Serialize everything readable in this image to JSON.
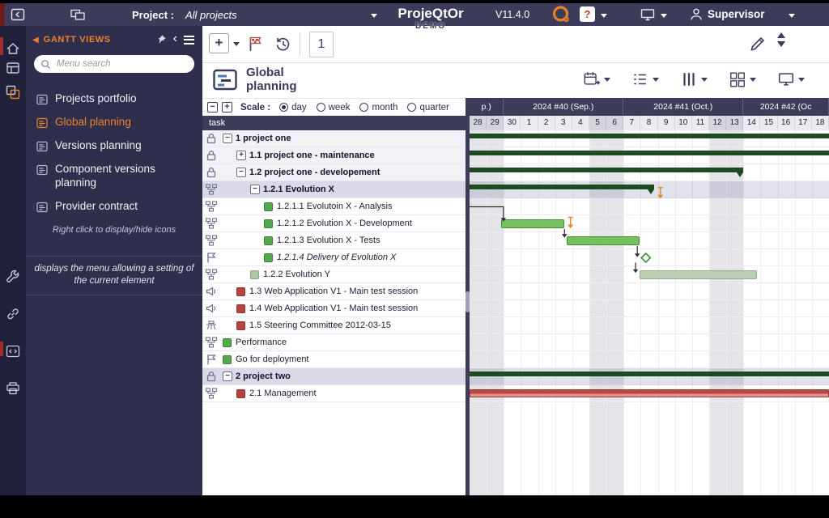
{
  "header": {
    "project_label": "Project :",
    "project_value": "All projects",
    "brand": "ProjeQtOr",
    "brand_sub": "DEMO",
    "version": "V11.4.0",
    "help": "?",
    "user": "Supervisor"
  },
  "sidebar": {
    "title": "GANTT VIEWS",
    "search_placeholder": "Menu search",
    "items": [
      {
        "label": "Projects portfolio",
        "selected": false
      },
      {
        "label": "Global planning",
        "selected": true
      },
      {
        "label": "Versions planning",
        "selected": false
      },
      {
        "label": "Component versions planning",
        "selected": false
      },
      {
        "label": "Provider contract",
        "selected": false
      }
    ],
    "hint": "Right click to display/hide icons",
    "tooltip": "displays the menu allowing a setting of the current element"
  },
  "rail_icons": [
    "home",
    "modules",
    "gantt-views",
    "tools",
    "links",
    "code",
    "print"
  ],
  "toolbar": {
    "count": "1"
  },
  "view": {
    "title": "Global planning",
    "header_icons": [
      "calendar-plus",
      "checklist",
      "columns",
      "layout",
      "screen"
    ]
  },
  "scale": {
    "zoom_out": "−",
    "zoom_in": "+",
    "label": "Scale :",
    "options": [
      "day",
      "week",
      "month",
      "quarter"
    ],
    "selected": "day"
  },
  "gantt": {
    "task_column_header": "task",
    "weeks": [
      {
        "label": "p.)",
        "days": 2
      },
      {
        "label": "2024 #40 (Sep.)",
        "days": 7
      },
      {
        "label": "2024 #41 (Oct.)",
        "days": 7
      },
      {
        "label": "2024 #42 (Oc",
        "days": 5
      }
    ],
    "days": [
      "28",
      "29",
      "30",
      "1",
      "2",
      "3",
      "4",
      "5",
      "6",
      "7",
      "8",
      "9",
      "10",
      "11",
      "12",
      "13",
      "14",
      "15",
      "16",
      "17",
      "18"
    ],
    "weekend_days": [
      0,
      1,
      7,
      8,
      14,
      15
    ],
    "rows": [
      {
        "label": "1 project one",
        "level": 0,
        "icon": "lock",
        "expand": "minus",
        "bold": true,
        "bg": "group",
        "bar": {
          "type": "summary",
          "start": 0,
          "end": 21
        }
      },
      {
        "label": "1.1 project one - maintenance",
        "level": 1,
        "icon": "lock",
        "expand": "plus",
        "bold": true,
        "bg": "group",
        "bar": {
          "type": "summary",
          "start": 0,
          "end": 21
        }
      },
      {
        "label": "1.2 project one - developement",
        "level": 1,
        "icon": "lock",
        "expand": "minus",
        "bold": true,
        "bg": "group",
        "bar": {
          "type": "summary",
          "start": 0,
          "end": 16,
          "cap_right": true
        }
      },
      {
        "label": "1.2.1 Evolution X",
        "level": 2,
        "icon": "org",
        "expand": "minus",
        "bold": true,
        "bg": "selected",
        "bar": {
          "type": "summary",
          "start": 0,
          "end": 10.8,
          "cap_right": true
        }
      },
      {
        "label": "1.2.1.1 Evolutoin X - Analysis",
        "level": 3,
        "icon": "org",
        "square": "green"
      },
      {
        "label": "1.2.1.2 Evolution X - Development",
        "level": 3,
        "icon": "org",
        "square": "green",
        "bar": {
          "type": "task",
          "start": 1.85,
          "end": 5.55
        }
      },
      {
        "label": "1.2.1.3 Evolution X - Tests",
        "level": 3,
        "icon": "org",
        "square": "green",
        "bar": {
          "type": "task",
          "start": 5.68,
          "end": 9.95
        }
      },
      {
        "label": "1.2.1.4 Delivery of Evolution X",
        "level": 3,
        "icon": "flag",
        "square": "green",
        "italic": true,
        "bar": {
          "type": "milestone",
          "start": 10.3
        }
      },
      {
        "label": "1.2.2 Evolution Y",
        "level": 2,
        "icon": "org",
        "square": "lightgreen",
        "bar": {
          "type": "task-light",
          "start": 9.95,
          "end": 16.8
        }
      },
      {
        "label": "1.3 Web Application V1 - Main test session",
        "level": 1,
        "icon": "test",
        "square": "red"
      },
      {
        "label": "1.4 Web Application V1 - Main test session",
        "level": 1,
        "icon": "test",
        "square": "red"
      },
      {
        "label": "1.5 Steering Committee 2012-03-15",
        "level": 1,
        "icon": "meeting",
        "square": "red"
      },
      {
        "label": "Performance",
        "level": 0,
        "icon": "org",
        "square": "green"
      },
      {
        "label": "Go for deployment",
        "level": 0,
        "icon": "flag",
        "square": "green"
      },
      {
        "label": "2 project two",
        "level": 0,
        "icon": "lock",
        "expand": "minus",
        "bold": true,
        "bg": "selected",
        "bar": {
          "type": "summary",
          "start": 0,
          "end": 21
        }
      },
      {
        "label": "2.1 Management",
        "level": 1,
        "icon": "org",
        "square": "red",
        "bar": {
          "type": "task-red",
          "start": 0,
          "end": 21
        }
      }
    ],
    "links": [
      {
        "points": [
          [
            0,
            4.5
          ],
          [
            1.98,
            4.5
          ],
          [
            1.98,
            5.15
          ]
        ]
      },
      {
        "points": [
          [
            5.55,
            5.8
          ],
          [
            5.55,
            6.1
          ]
        ]
      },
      {
        "points": [
          [
            9.8,
            6.8
          ],
          [
            9.8,
            7.25
          ]
        ]
      },
      {
        "points": [
          [
            9.7,
            7.78
          ],
          [
            9.7,
            8.18
          ]
        ]
      }
    ],
    "markers": [
      {
        "day": 11.15,
        "row": 3.8
      },
      {
        "day": 5.9,
        "row": 5.55
      }
    ]
  },
  "colors": {
    "accent": "#e8832a",
    "summary_bar": "#1d4a20",
    "task_bar": "#76c05f",
    "task_bar_light": "#bccfb4",
    "task_bar_red": "#b84743",
    "selected_row": "#d9d9e8",
    "header_bg": "#3c3c5a"
  }
}
